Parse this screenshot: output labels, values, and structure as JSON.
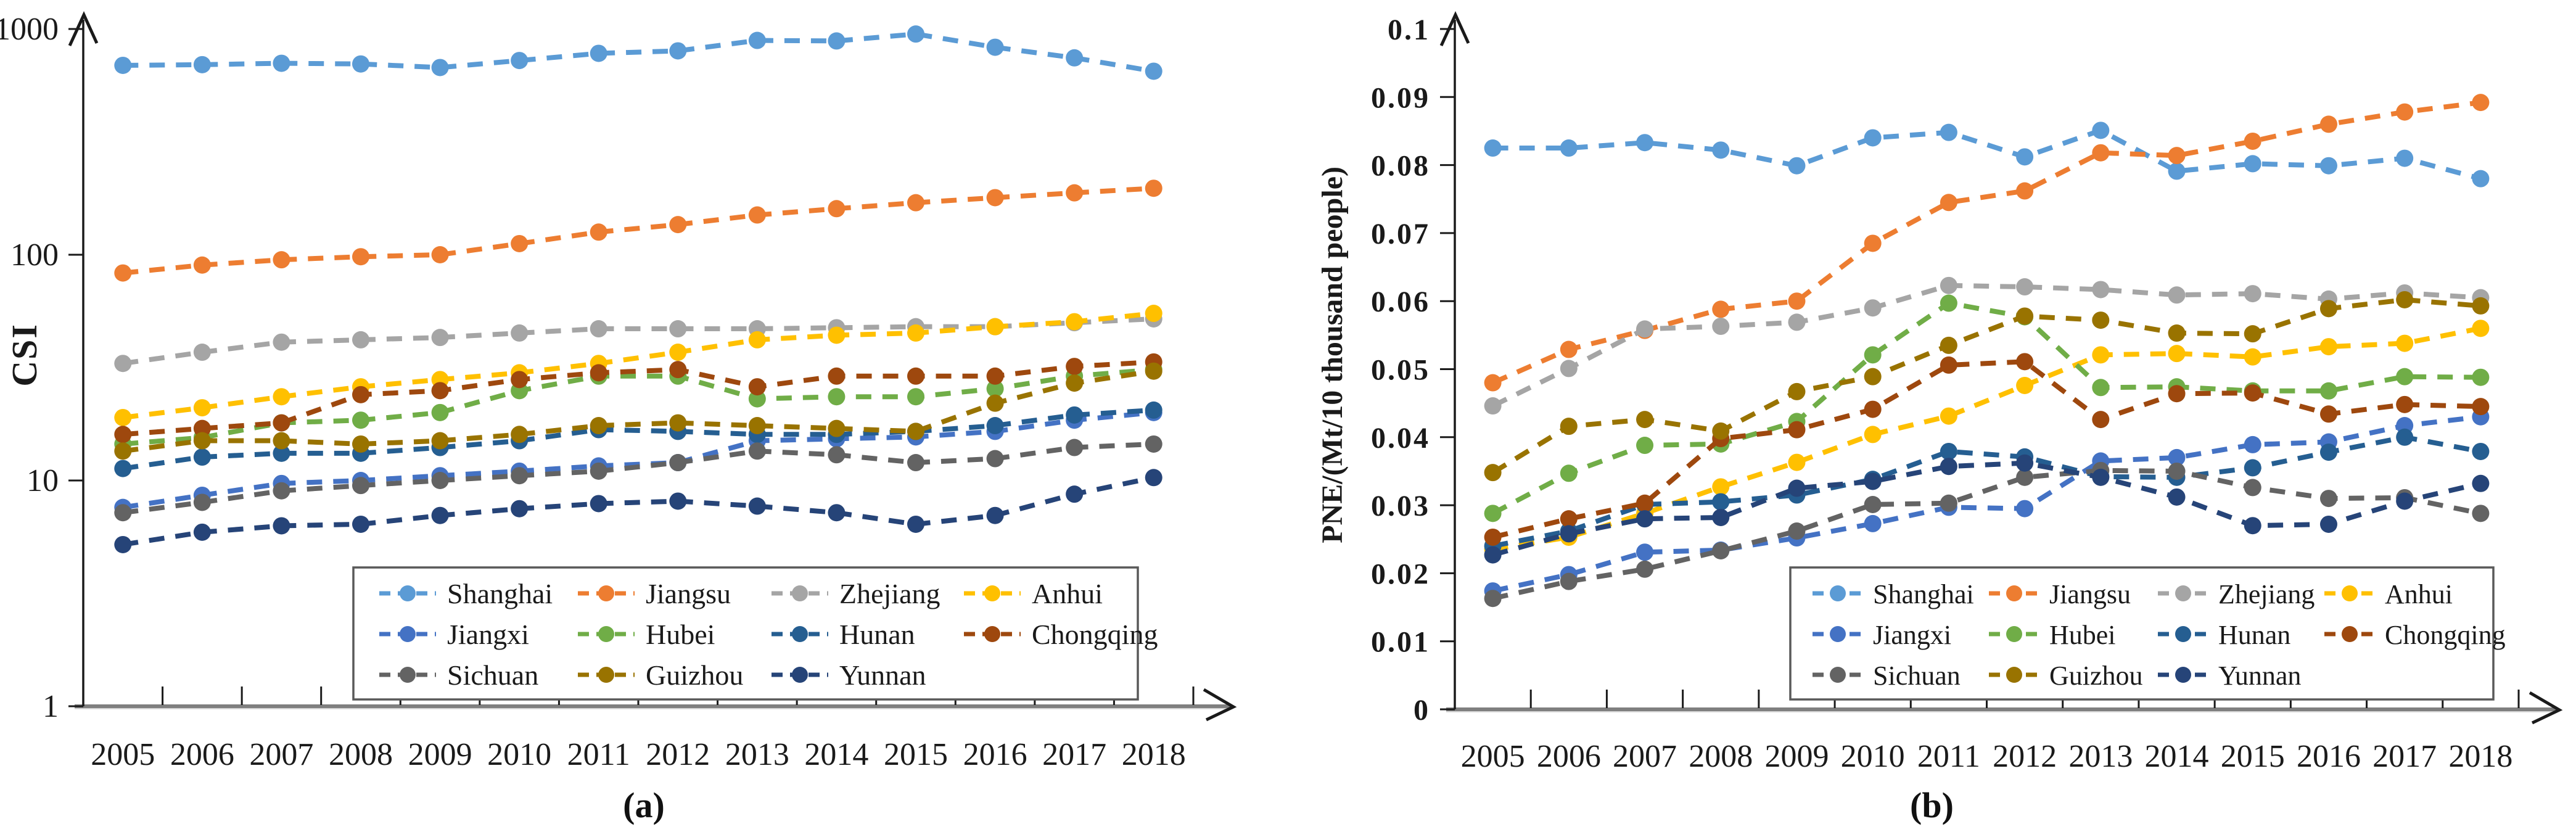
{
  "figure": {
    "background": "#ffffff"
  },
  "chart_data": [
    {
      "type": "line",
      "panel": "a",
      "caption": "(a)",
      "title": "",
      "xlabel": "",
      "ylabel": "CSI",
      "categories": [
        "2005",
        "2006",
        "2007",
        "2008",
        "2009",
        "2010",
        "2011",
        "2012",
        "2013",
        "2014",
        "2015",
        "2016",
        "2017",
        "2018"
      ],
      "yscale": "log",
      "ylim": [
        1,
        1000
      ],
      "yticks": [
        1,
        10,
        100,
        1000
      ],
      "ytick_labels": [
        "1",
        "10",
        "100",
        "1000"
      ],
      "grid": false,
      "line_style": "dashed",
      "marker": "circle",
      "legend_position": "inside-bottom-center",
      "legend_columns": 4,
      "series": [
        {
          "name": "Shanghai",
          "color": "#5B9BD5",
          "values": [
            690,
            695,
            705,
            700,
            675,
            725,
            780,
            800,
            890,
            885,
            950,
            830,
            745,
            650
          ]
        },
        {
          "name": "Jiangsu",
          "color": "#ED7D31",
          "values": [
            83,
            90,
            95,
            98,
            100,
            112,
            126,
            136,
            150,
            160,
            170,
            179,
            188,
            197
          ]
        },
        {
          "name": "Zhejiang",
          "color": "#A5A5A5",
          "values": [
            33,
            37,
            41,
            42,
            43,
            45,
            47,
            47,
            47,
            47.5,
            48,
            48,
            50,
            52
          ]
        },
        {
          "name": "Anhui",
          "color": "#FFC000",
          "values": [
            19,
            21,
            23.5,
            26,
            28,
            30,
            33,
            37,
            42,
            44,
            45,
            48,
            50.5,
            55
          ]
        },
        {
          "name": "Jiangxi",
          "color": "#4472C4",
          "values": [
            7.6,
            8.6,
            9.7,
            10,
            10.5,
            11,
            11.6,
            12,
            15,
            15.3,
            15.6,
            16.5,
            18.5,
            20
          ]
        },
        {
          "name": "Hubei",
          "color": "#70AD47",
          "values": [
            14.5,
            15.5,
            18,
            18.5,
            20,
            25,
            29,
            29,
            23,
            23.5,
            23.5,
            25.5,
            29,
            31
          ]
        },
        {
          "name": "Hunan",
          "color": "#255E91",
          "values": [
            11.3,
            12.7,
            13.2,
            13.2,
            14,
            15,
            16.8,
            16.5,
            16,
            16,
            16.5,
            17.5,
            19.5,
            20.5
          ]
        },
        {
          "name": "Chongqing",
          "color": "#9E480E",
          "values": [
            16,
            17,
            18,
            24,
            25,
            28,
            30,
            31,
            26,
            29,
            29,
            29,
            32,
            33.5
          ]
        },
        {
          "name": "Sichuan",
          "color": "#636363",
          "values": [
            7.2,
            8,
            9,
            9.5,
            10,
            10.5,
            11,
            12,
            13.5,
            13,
            12,
            12.5,
            14,
            14.5
          ]
        },
        {
          "name": "Guizhou",
          "color": "#997300",
          "values": [
            13.5,
            15,
            15,
            14.5,
            15,
            16,
            17.5,
            18,
            17.5,
            17,
            16.5,
            22,
            27,
            30.5
          ]
        },
        {
          "name": "Yunnan",
          "color": "#264478",
          "values": [
            5.2,
            5.9,
            6.3,
            6.4,
            7,
            7.5,
            7.9,
            8.1,
            7.7,
            7.2,
            6.4,
            7,
            8.7,
            10.3
          ]
        }
      ]
    },
    {
      "type": "line",
      "panel": "b",
      "caption": "(b)",
      "title": "",
      "xlabel": "",
      "ylabel": "PNE/(Mt/10 thousand people)",
      "categories": [
        "2005",
        "2006",
        "2007",
        "2008",
        "2009",
        "2010",
        "2011",
        "2012",
        "2013",
        "2014",
        "2015",
        "2016",
        "2017",
        "2018"
      ],
      "yscale": "linear",
      "ylim": [
        0,
        0.1
      ],
      "yticks": [
        0,
        0.01,
        0.02,
        0.03,
        0.04,
        0.05,
        0.06,
        0.07,
        0.08,
        0.09,
        0.1
      ],
      "ytick_labels": [
        "0",
        "0.01",
        "0.02",
        "0.03",
        "0.04",
        "0.05",
        "0.06",
        "0.07",
        "0.08",
        "0.09",
        "0.1"
      ],
      "grid": false,
      "line_style": "dashed",
      "marker": "circle",
      "legend_position": "inside-bottom-right",
      "legend_columns": 4,
      "series": [
        {
          "name": "Shanghai",
          "color": "#5B9BD5",
          "values": [
            0.0825,
            0.0825,
            0.0833,
            0.0822,
            0.0799,
            0.084,
            0.0848,
            0.0812,
            0.0851,
            0.0791,
            0.0802,
            0.0799,
            0.081,
            0.078
          ]
        },
        {
          "name": "Jiangsu",
          "color": "#ED7D31",
          "values": [
            0.048,
            0.0529,
            0.0557,
            0.0588,
            0.06,
            0.0685,
            0.0745,
            0.0762,
            0.0818,
            0.0814,
            0.0835,
            0.086,
            0.0878,
            0.0892
          ]
        },
        {
          "name": "Zhejiang",
          "color": "#A5A5A5",
          "values": [
            0.0446,
            0.0501,
            0.0559,
            0.0563,
            0.0569,
            0.059,
            0.0623,
            0.0621,
            0.0617,
            0.0609,
            0.0611,
            0.0603,
            0.0612,
            0.0605
          ]
        },
        {
          "name": "Anhui",
          "color": "#FFC000",
          "values": [
            0.0235,
            0.0253,
            0.0288,
            0.0327,
            0.0363,
            0.0404,
            0.0431,
            0.0476,
            0.0521,
            0.0523,
            0.0518,
            0.0533,
            0.0538,
            0.056
          ]
        },
        {
          "name": "Jiangxi",
          "color": "#4472C4",
          "values": [
            0.0174,
            0.0198,
            0.0231,
            0.0234,
            0.0252,
            0.0273,
            0.0297,
            0.0295,
            0.0365,
            0.037,
            0.0389,
            0.0393,
            0.0417,
            0.043
          ]
        },
        {
          "name": "Hubei",
          "color": "#70AD47",
          "values": [
            0.0288,
            0.0347,
            0.0388,
            0.039,
            0.0423,
            0.0521,
            0.0597,
            0.0577,
            0.0473,
            0.0474,
            0.0468,
            0.0468,
            0.0489,
            0.0488
          ]
        },
        {
          "name": "Hunan",
          "color": "#255E91",
          "values": [
            0.024,
            0.0262,
            0.0301,
            0.0305,
            0.0315,
            0.0338,
            0.0379,
            0.0371,
            0.0342,
            0.0341,
            0.0355,
            0.0378,
            0.04,
            0.0379
          ]
        },
        {
          "name": "Chongqing",
          "color": "#9E480E",
          "values": [
            0.0253,
            0.028,
            0.0303,
            0.0398,
            0.0411,
            0.0441,
            0.0506,
            0.0511,
            0.0426,
            0.0464,
            0.0465,
            0.0434,
            0.0448,
            0.0445
          ]
        },
        {
          "name": "Sichuan",
          "color": "#636363",
          "values": [
            0.0163,
            0.0188,
            0.0206,
            0.0233,
            0.0262,
            0.0301,
            0.0303,
            0.0341,
            0.0351,
            0.035,
            0.0326,
            0.031,
            0.0311,
            0.0288
          ]
        },
        {
          "name": "Guizhou",
          "color": "#997300",
          "values": [
            0.0348,
            0.0416,
            0.0426,
            0.0409,
            0.0467,
            0.0489,
            0.0535,
            0.0578,
            0.0572,
            0.0553,
            0.0552,
            0.0589,
            0.0602,
            0.0593
          ]
        },
        {
          "name": "Yunnan",
          "color": "#264478",
          "values": [
            0.0227,
            0.0258,
            0.028,
            0.0282,
            0.0325,
            0.0335,
            0.0357,
            0.0362,
            0.0341,
            0.0312,
            0.027,
            0.0272,
            0.0306,
            0.0332
          ]
        }
      ]
    }
  ]
}
